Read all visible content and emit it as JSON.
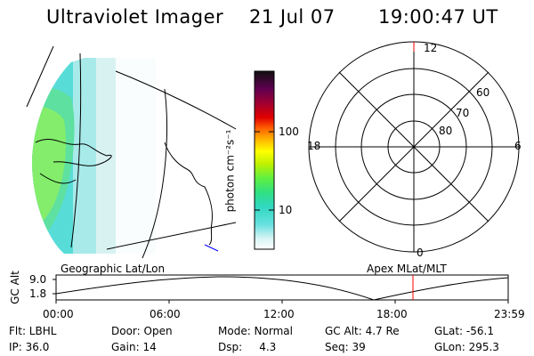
{
  "header": {
    "instrument": "Ultraviolet Imager",
    "date": "21 Jul 07",
    "time": "19:00:47 UT"
  },
  "colorbar": {
    "unit_label": "photon cm⁻²s⁻¹",
    "tick_100": "100",
    "tick_10": "10"
  },
  "polar_plot": {
    "mlt_top": "12",
    "mlt_left": "18",
    "mlt_right": "6",
    "mlt_bottom": "0",
    "lat_60": "60",
    "lat_70": "70",
    "lat_80": "80"
  },
  "timeline": {
    "left_label": "Geographic Lat/Lon",
    "right_label": "Apex MLat/MLT",
    "y_axis_title": "GC Alt",
    "y_tick_top": "9.0",
    "y_tick_bottom": "1.8",
    "x_ticks": [
      "00:00",
      "06:00",
      "12:00",
      "18:00",
      "23:59"
    ],
    "marker_time": "19:00:47",
    "marker_color": "#ff0000"
  },
  "info": {
    "row1": [
      {
        "key": "flt",
        "text": "Flt: LBHL"
      },
      {
        "key": "door",
        "text": "Door: Open"
      },
      {
        "key": "mode",
        "text": "Mode: Normal"
      },
      {
        "key": "gcalt",
        "text": "GC Alt: 4.7 Re"
      },
      {
        "key": "glat",
        "text": "GLat: -56.1"
      }
    ],
    "row2": [
      {
        "key": "ip",
        "text": "IP: 36.0"
      },
      {
        "key": "gain",
        "text": "Gain: 14"
      },
      {
        "key": "dsp",
        "text": "Dsp:     4.3"
      },
      {
        "key": "seq",
        "text": "Seq: 39"
      },
      {
        "key": "glon",
        "text": "GLon: 295.3"
      }
    ]
  }
}
